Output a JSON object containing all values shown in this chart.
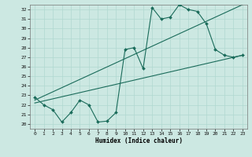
{
  "xlabel": "Humidex (Indice chaleur)",
  "bg_color": "#cce8e2",
  "grid_color": "#b0d8d0",
  "line_color": "#1a6b5a",
  "xlim": [
    -0.5,
    23.5
  ],
  "ylim": [
    19.5,
    32.5
  ],
  "xticks": [
    0,
    1,
    2,
    3,
    4,
    5,
    6,
    7,
    8,
    9,
    10,
    11,
    12,
    13,
    14,
    15,
    16,
    17,
    18,
    19,
    20,
    21,
    22,
    23
  ],
  "yticks": [
    20,
    21,
    22,
    23,
    24,
    25,
    26,
    27,
    28,
    29,
    30,
    31,
    32
  ],
  "series1_x": [
    0,
    1,
    2,
    3,
    4,
    5,
    6,
    7,
    8,
    9,
    10,
    11,
    12,
    13,
    14,
    15,
    16,
    17,
    18,
    19,
    20,
    21,
    22,
    23
  ],
  "series1_y": [
    22.8,
    22.0,
    21.5,
    20.2,
    21.2,
    22.5,
    22.0,
    20.2,
    20.3,
    21.2,
    27.8,
    28.0,
    25.8,
    32.2,
    31.0,
    31.2,
    32.5,
    32.0,
    31.8,
    30.5,
    27.8,
    27.2,
    27.0,
    27.2
  ],
  "series2_x": [
    0,
    23
  ],
  "series2_y": [
    22.2,
    27.2
  ],
  "series3_x": [
    0,
    23
  ],
  "series3_y": [
    22.5,
    32.5
  ],
  "xlabel_fontsize": 5.5,
  "tick_fontsize": 4.5
}
